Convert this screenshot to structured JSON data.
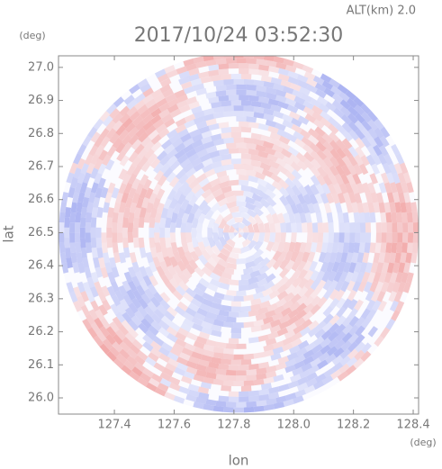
{
  "chart_data": {
    "type": "radar-map",
    "title": "2017/10/24 03:52:30",
    "subtitle": "ALT(km) 2.0",
    "x_label": "lon",
    "y_label": "lat",
    "x_unit": "(deg)",
    "y_unit": "(deg)",
    "xlim": [
      127.213,
      128.418
    ],
    "ylim": [
      25.951,
      27.035
    ],
    "xticks": [
      127.4,
      127.6,
      127.8,
      {
        "value": 128.0,
        "label": "128.0"
      },
      128.2,
      128.4
    ],
    "yticks": [
      {
        "value": 26.0,
        "label": "26.0"
      },
      26.1,
      26.2,
      26.3,
      26.4,
      26.5,
      26.6,
      26.7,
      26.8,
      26.9,
      {
        "value": 27.0,
        "label": "27.0"
      }
    ],
    "center": [
      127.816,
      26.5
    ],
    "radius_lon": 0.602,
    "radius_lat": 0.545,
    "colors": [
      "#f2a9a9",
      "#aab2f2"
    ]
  }
}
